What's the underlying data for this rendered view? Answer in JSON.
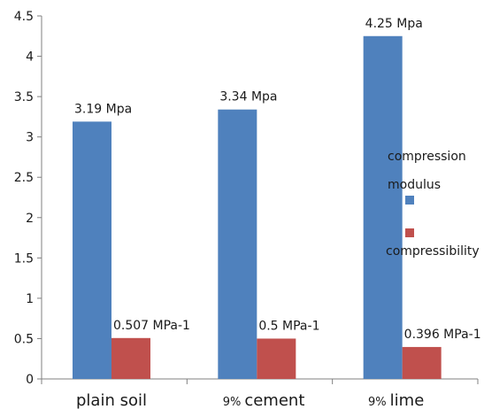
{
  "chart_data": {
    "type": "bar",
    "categories": [
      {
        "prefix": "",
        "name": "plain soil"
      },
      {
        "prefix": "9%",
        "name": "cement"
      },
      {
        "prefix": "9%",
        "name": "lime"
      }
    ],
    "series": [
      {
        "name_lines": [
          "compression",
          "modulus"
        ],
        "values": [
          3.19,
          3.34,
          4.25
        ],
        "labels": [
          "3.19 Mpa",
          "3.34 Mpa",
          "4.25 Mpa"
        ],
        "color": "#4f81bd"
      },
      {
        "name_lines": [
          "compressibility"
        ],
        "values": [
          0.507,
          0.5,
          0.396
        ],
        "labels": [
          "0.507 MPa-1",
          "0.5 MPa-1",
          "0.396 MPa-1"
        ],
        "color": "#c0504d"
      }
    ],
    "ylim": [
      0,
      4.5
    ],
    "yticks": [
      "0",
      "0.5",
      "1",
      "1.5",
      "2",
      "2.5",
      "3",
      "3.5",
      "4",
      "4.5"
    ],
    "grid": false,
    "legend_position": "right"
  }
}
